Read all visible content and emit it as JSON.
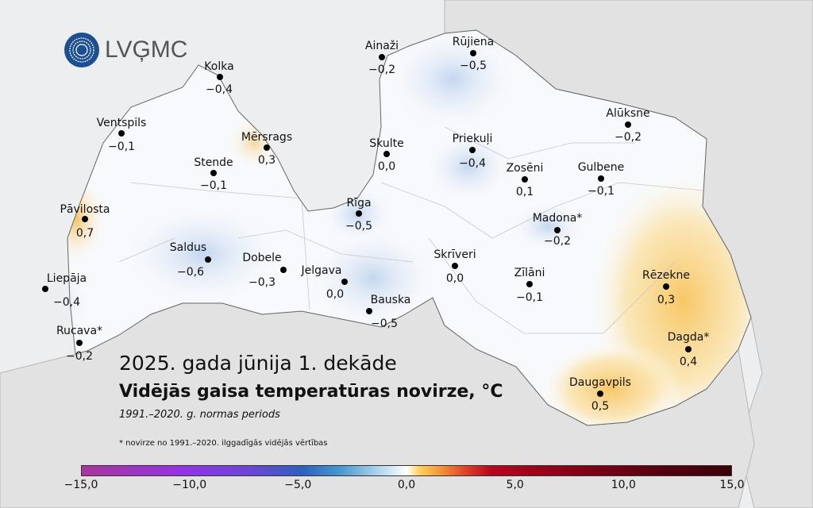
{
  "logo": {
    "text": "LVĢMC"
  },
  "title": {
    "period": "2025. gada jūnija 1. dekāde",
    "main": "Vidējās gaisa temperatūras novirze, °C",
    "norm": "1991.–2020. g. normas periods",
    "footnote": "* novirze no 1991.–2020. ilggadīgās vidējās vērtības"
  },
  "stations": [
    {
      "name": "Kolka",
      "value": "−0,4"
    },
    {
      "name": "Ventspils",
      "value": "−0,1"
    },
    {
      "name": "Mērsrags",
      "value": "0,3"
    },
    {
      "name": "Stende",
      "value": "−0,1"
    },
    {
      "name": "Pāvilosta",
      "value": "0,7"
    },
    {
      "name": "Saldus",
      "value": "−0,6"
    },
    {
      "name": "Dobele",
      "value": "−0,3"
    },
    {
      "name": "Jelgava",
      "value": "0,0"
    },
    {
      "name": "Liepāja",
      "value": "−0,4"
    },
    {
      "name": "Rucava*",
      "value": "−0,2"
    },
    {
      "name": "Ainaži",
      "value": "−0,2"
    },
    {
      "name": "Rūjiena",
      "value": "−0,5"
    },
    {
      "name": "Skulte",
      "value": "0,0"
    },
    {
      "name": "Priekuļi",
      "value": "−0,4"
    },
    {
      "name": "Alūksne",
      "value": "−0,2"
    },
    {
      "name": "Zosēni",
      "value": "0,1"
    },
    {
      "name": "Gulbene",
      "value": "−0,1"
    },
    {
      "name": "Rīga",
      "value": "−0,5"
    },
    {
      "name": "Madona*",
      "value": "−0,2"
    },
    {
      "name": "Skrīveri",
      "value": "0,0"
    },
    {
      "name": "Zīlāni",
      "value": "−0,1"
    },
    {
      "name": "Bauska",
      "value": "−0,5"
    },
    {
      "name": "Rēzekne",
      "value": "0,3"
    },
    {
      "name": "Dagda*",
      "value": "0,4"
    },
    {
      "name": "Daugavpils",
      "value": "0,5"
    }
  ],
  "colorbar": {
    "min": -15,
    "max": 15,
    "ticks": [
      "−15,0",
      "−10,0",
      "−5,0",
      "0,0",
      "5,0",
      "10,0",
      "15,0"
    ],
    "colors": [
      "#a8379c",
      "#9333e6",
      "#2e5fc0",
      "#b4d8ec",
      "#ffffff",
      "#ffd060",
      "#e04428",
      "#b8071e",
      "#3a0008"
    ]
  }
}
